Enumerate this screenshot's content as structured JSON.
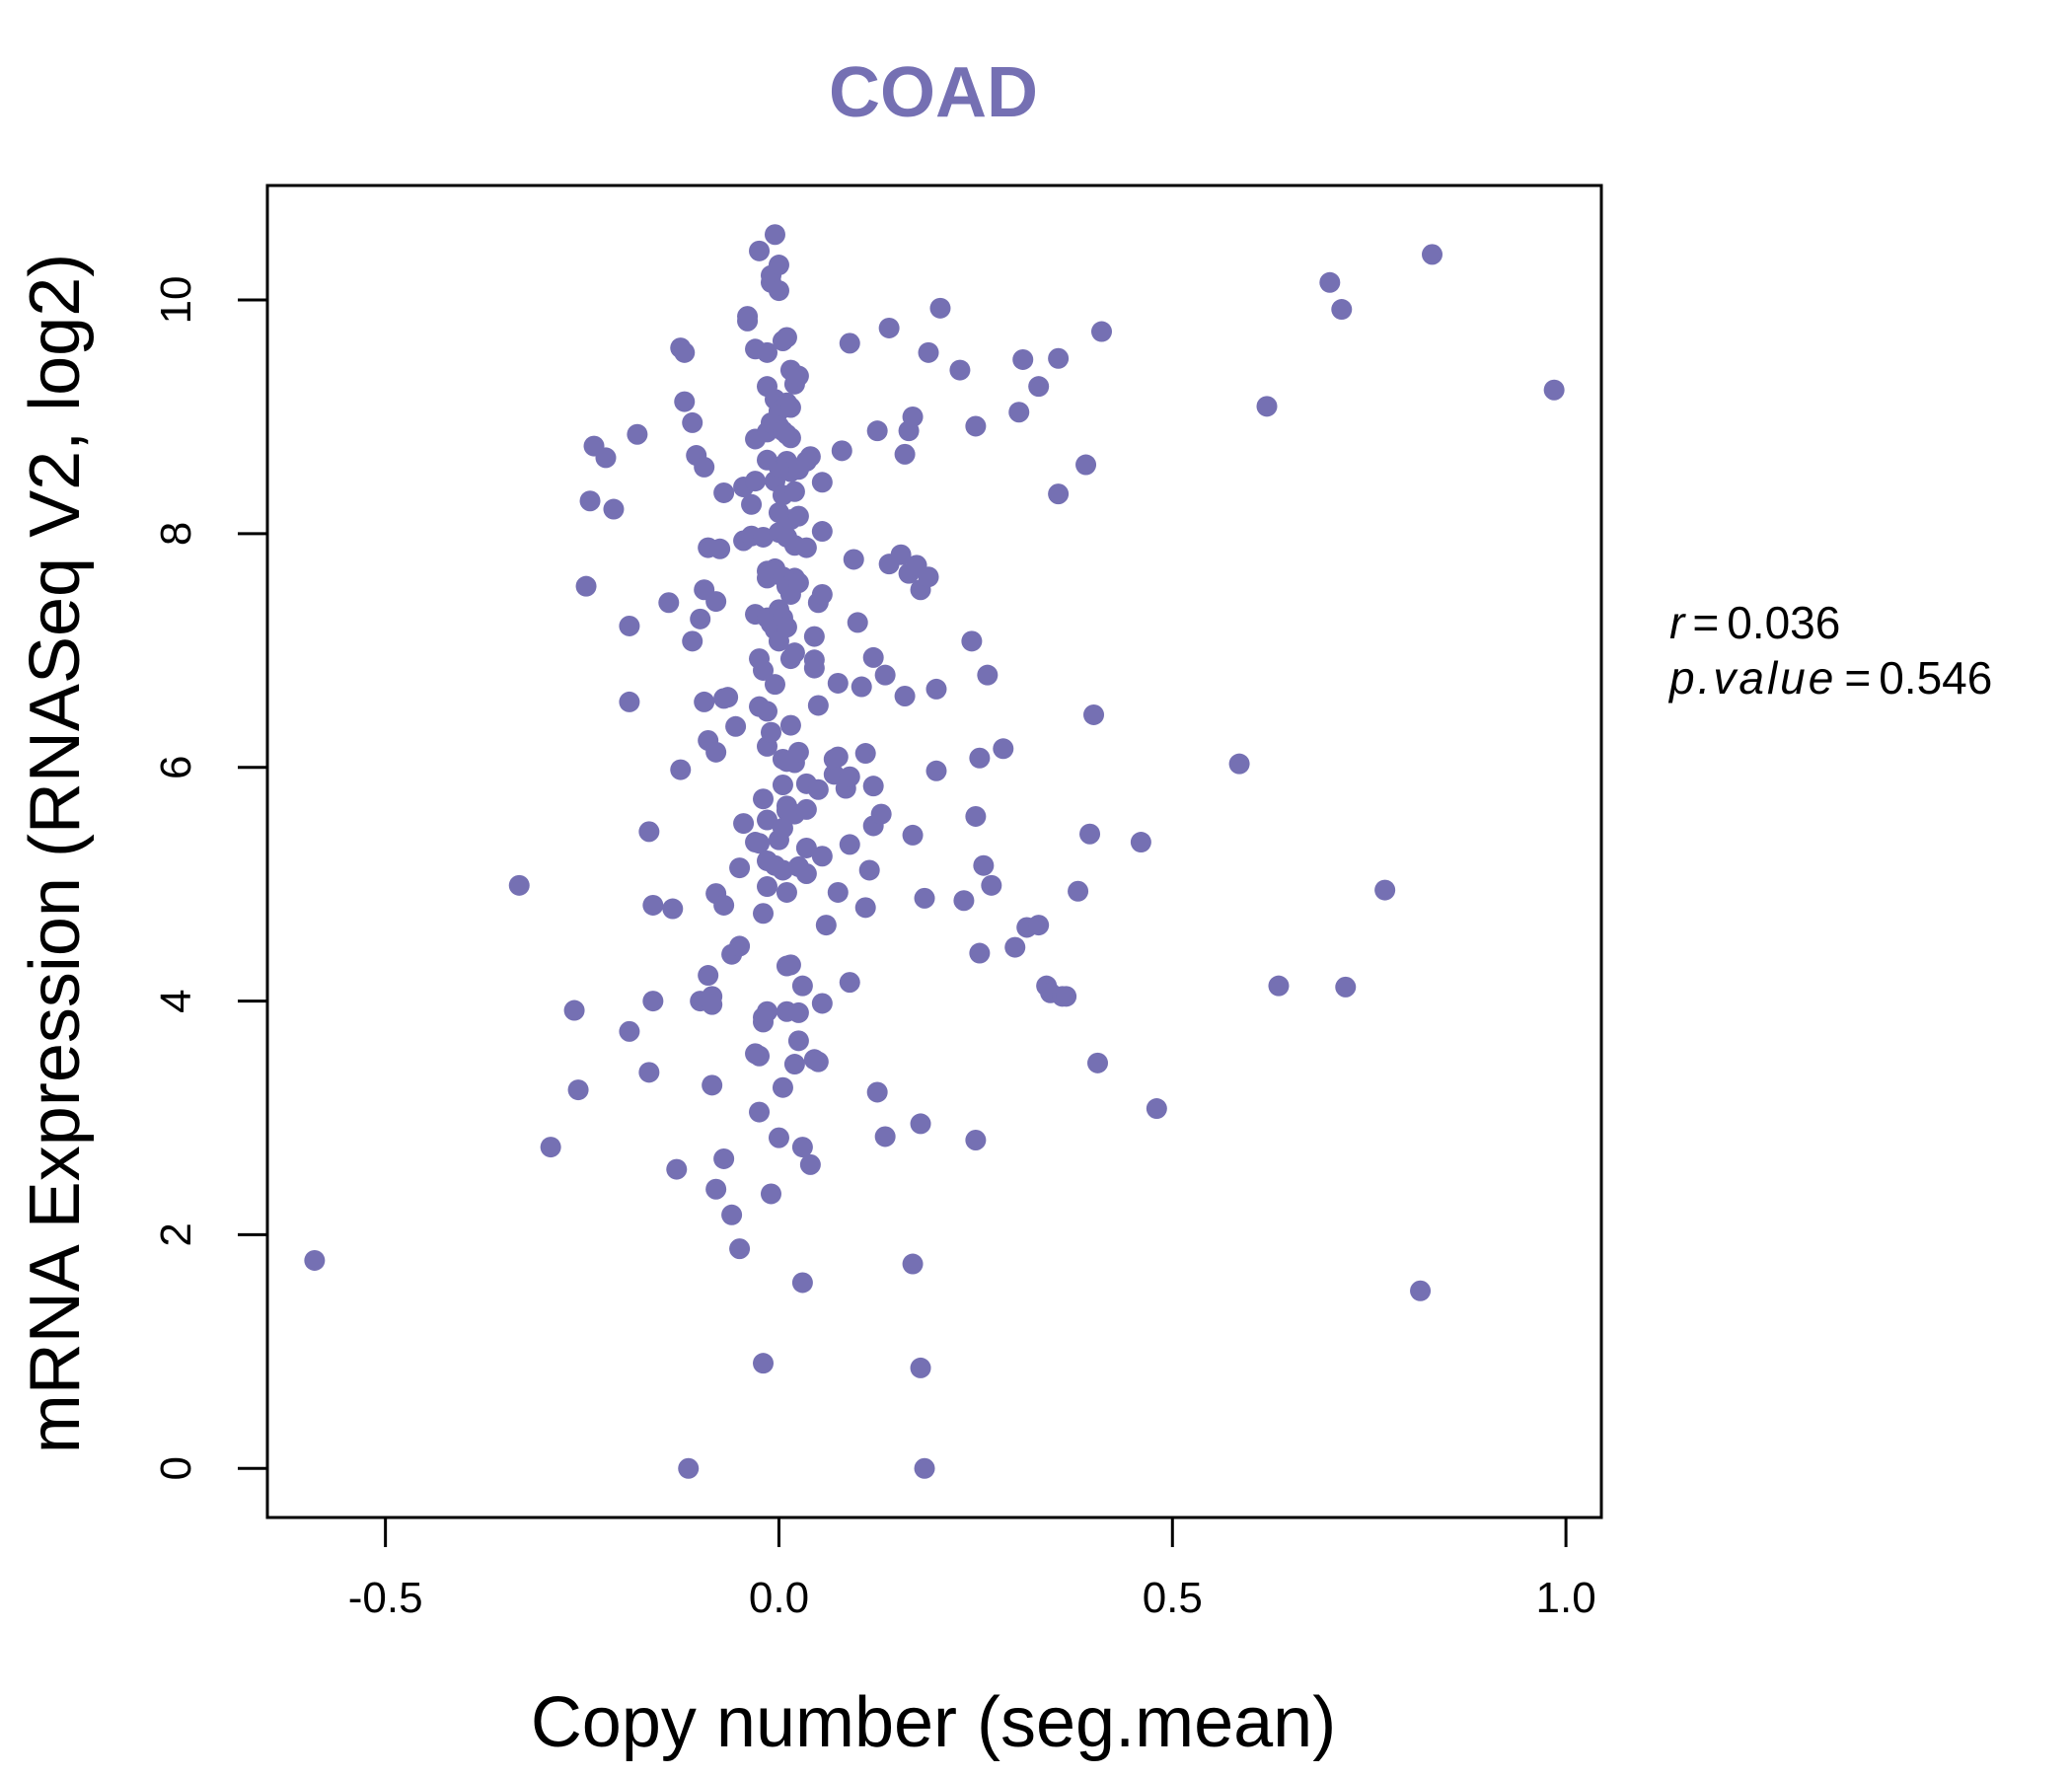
{
  "chart_data": {
    "type": "scatter",
    "title": "COAD",
    "xlabel": "Copy number (seg.mean)",
    "ylabel": "mRNA Expression (RNASeq V2, log2)",
    "xlim": [
      -0.65,
      1.045
    ],
    "ylim": [
      -0.42,
      10.98
    ],
    "xticks": [
      -0.5,
      0.0,
      0.5,
      1.0
    ],
    "xtick_labels": [
      "-0.5",
      "0.0",
      "0.5",
      "1.0"
    ],
    "yticks": [
      0,
      2,
      4,
      6,
      8,
      10
    ],
    "ytick_labels": [
      "0",
      "2",
      "4",
      "6",
      "8",
      "10"
    ],
    "grid": false,
    "stats": {
      "r_label": "r",
      "r_value": "0.036",
      "p_label": "p.value",
      "p_value": "0.546"
    },
    "points": [
      [
        -0.59,
        1.78
      ],
      [
        -0.33,
        4.99
      ],
      [
        -0.29,
        2.75
      ],
      [
        -0.26,
        3.92
      ],
      [
        -0.255,
        3.24
      ],
      [
        -0.245,
        7.55
      ],
      [
        -0.24,
        8.28
      ],
      [
        -0.235,
        8.75
      ],
      [
        -0.22,
        8.65
      ],
      [
        -0.21,
        8.21
      ],
      [
        -0.19,
        7.21
      ],
      [
        -0.19,
        6.56
      ],
      [
        -0.19,
        3.74
      ],
      [
        -0.18,
        8.85
      ],
      [
        -0.165,
        5.45
      ],
      [
        -0.165,
        3.39
      ],
      [
        -0.16,
        4.0
      ],
      [
        -0.16,
        4.82
      ],
      [
        -0.14,
        7.41
      ],
      [
        -0.135,
        4.79
      ],
      [
        -0.13,
        2.56
      ],
      [
        -0.125,
        5.98
      ],
      [
        -0.125,
        9.59
      ],
      [
        -0.12,
        9.13
      ],
      [
        -0.12,
        9.55
      ],
      [
        -0.115,
        0.0
      ],
      [
        -0.11,
        8.95
      ],
      [
        -0.11,
        7.08
      ],
      [
        -0.105,
        8.67
      ],
      [
        -0.1,
        7.27
      ],
      [
        -0.1,
        4.0
      ],
      [
        -0.095,
        8.57
      ],
      [
        -0.095,
        7.52
      ],
      [
        -0.095,
        6.56
      ],
      [
        -0.09,
        7.88
      ],
      [
        -0.09,
        6.23
      ],
      [
        -0.09,
        4.22
      ],
      [
        -0.085,
        4.04
      ],
      [
        -0.085,
        3.97
      ],
      [
        -0.085,
        3.28
      ],
      [
        -0.08,
        7.42
      ],
      [
        -0.08,
        6.13
      ],
      [
        -0.08,
        4.92
      ],
      [
        -0.08,
        2.39
      ],
      [
        -0.075,
        7.87
      ],
      [
        -0.07,
        8.35
      ],
      [
        -0.07,
        6.59
      ],
      [
        -0.07,
        4.82
      ],
      [
        -0.07,
        2.65
      ],
      [
        -0.065,
        6.6
      ],
      [
        -0.06,
        4.4
      ],
      [
        -0.06,
        2.17
      ],
      [
        -0.055,
        6.35
      ],
      [
        -0.05,
        5.14
      ],
      [
        -0.05,
        4.47
      ],
      [
        -0.05,
        1.88
      ],
      [
        -0.045,
        8.4
      ],
      [
        -0.045,
        7.94
      ],
      [
        -0.045,
        5.52
      ],
      [
        -0.04,
        9.82
      ],
      [
        -0.04,
        9.86
      ],
      [
        -0.035,
        7.98
      ],
      [
        -0.035,
        8.25
      ],
      [
        -0.03,
        9.58
      ],
      [
        -0.03,
        8.45
      ],
      [
        -0.03,
        8.81
      ],
      [
        -0.03,
        7.31
      ],
      [
        -0.03,
        5.36
      ],
      [
        -0.03,
        3.55
      ],
      [
        -0.025,
        10.42
      ],
      [
        -0.025,
        6.93
      ],
      [
        -0.025,
        6.52
      ],
      [
        -0.025,
        5.35
      ],
      [
        -0.025,
        3.53
      ],
      [
        -0.025,
        3.05
      ],
      [
        -0.02,
        7.97
      ],
      [
        -0.02,
        6.83
      ],
      [
        -0.02,
        5.73
      ],
      [
        -0.02,
        4.75
      ],
      [
        -0.02,
        3.86
      ],
      [
        -0.02,
        3.82
      ],
      [
        -0.02,
        0.9
      ],
      [
        -0.015,
        9.55
      ],
      [
        -0.015,
        9.26
      ],
      [
        -0.015,
        8.87
      ],
      [
        -0.015,
        8.63
      ],
      [
        -0.015,
        7.68
      ],
      [
        -0.015,
        7.62
      ],
      [
        -0.015,
        7.28
      ],
      [
        -0.015,
        6.48
      ],
      [
        -0.015,
        6.18
      ],
      [
        -0.015,
        5.55
      ],
      [
        -0.015,
        5.2
      ],
      [
        -0.015,
        4.98
      ],
      [
        -0.015,
        3.91
      ],
      [
        -0.01,
        10.15
      ],
      [
        -0.01,
        10.21
      ],
      [
        -0.01,
        8.95
      ],
      [
        -0.01,
        7.23
      ],
      [
        -0.01,
        6.3
      ],
      [
        -0.01,
        2.35
      ],
      [
        -0.005,
        10.56
      ],
      [
        -0.005,
        9.15
      ],
      [
        -0.005,
        8.45
      ],
      [
        -0.005,
        7.7
      ],
      [
        -0.005,
        7.18
      ],
      [
        -0.005,
        6.71
      ],
      [
        -0.005,
        5.16
      ],
      [
        0.0,
        10.3
      ],
      [
        0.0,
        10.08
      ],
      [
        0.0,
        9.05
      ],
      [
        0.0,
        8.92
      ],
      [
        0.0,
        8.57
      ],
      [
        0.0,
        8.18
      ],
      [
        0.0,
        8.01
      ],
      [
        0.0,
        7.35
      ],
      [
        0.0,
        7.18
      ],
      [
        0.0,
        7.08
      ],
      [
        0.0,
        5.38
      ],
      [
        0.0,
        2.83
      ],
      [
        0.005,
        9.65
      ],
      [
        0.005,
        8.88
      ],
      [
        0.005,
        8.33
      ],
      [
        0.005,
        7.63
      ],
      [
        0.005,
        7.28
      ],
      [
        0.005,
        6.07
      ],
      [
        0.005,
        5.85
      ],
      [
        0.005,
        5.48
      ],
      [
        0.005,
        5.12
      ],
      [
        0.005,
        3.26
      ],
      [
        0.01,
        9.68
      ],
      [
        0.01,
        9.12
      ],
      [
        0.01,
        8.85
      ],
      [
        0.01,
        8.62
      ],
      [
        0.01,
        7.97
      ],
      [
        0.01,
        7.55
      ],
      [
        0.01,
        7.2
      ],
      [
        0.01,
        6.05
      ],
      [
        0.01,
        5.67
      ],
      [
        0.01,
        5.63
      ],
      [
        0.01,
        4.93
      ],
      [
        0.01,
        4.3
      ],
      [
        0.01,
        3.91
      ],
      [
        0.015,
        9.4
      ],
      [
        0.015,
        9.08
      ],
      [
        0.015,
        8.82
      ],
      [
        0.015,
        8.53
      ],
      [
        0.015,
        8.12
      ],
      [
        0.015,
        7.48
      ],
      [
        0.015,
        6.93
      ],
      [
        0.015,
        6.36
      ],
      [
        0.015,
        4.31
      ],
      [
        0.02,
        9.28
      ],
      [
        0.02,
        8.36
      ],
      [
        0.02,
        7.9
      ],
      [
        0.02,
        7.62
      ],
      [
        0.02,
        6.98
      ],
      [
        0.02,
        6.04
      ],
      [
        0.02,
        5.6
      ],
      [
        0.02,
        3.46
      ],
      [
        0.025,
        9.35
      ],
      [
        0.025,
        8.55
      ],
      [
        0.025,
        8.15
      ],
      [
        0.025,
        7.58
      ],
      [
        0.025,
        6.13
      ],
      [
        0.025,
        5.15
      ],
      [
        0.025,
        3.66
      ],
      [
        0.025,
        3.9
      ],
      [
        0.03,
        4.13
      ],
      [
        0.03,
        2.75
      ],
      [
        0.03,
        1.59
      ],
      [
        0.035,
        8.62
      ],
      [
        0.035,
        7.88
      ],
      [
        0.035,
        5.86
      ],
      [
        0.035,
        5.64
      ],
      [
        0.035,
        5.31
      ],
      [
        0.035,
        5.09
      ],
      [
        0.04,
        8.66
      ],
      [
        0.04,
        2.6
      ],
      [
        0.045,
        7.12
      ],
      [
        0.045,
        6.92
      ],
      [
        0.045,
        6.85
      ],
      [
        0.045,
        3.5
      ],
      [
        0.05,
        7.41
      ],
      [
        0.05,
        6.53
      ],
      [
        0.05,
        5.81
      ],
      [
        0.05,
        3.48
      ],
      [
        0.055,
        8.44
      ],
      [
        0.055,
        8.02
      ],
      [
        0.055,
        7.48
      ],
      [
        0.055,
        5.24
      ],
      [
        0.055,
        3.98
      ],
      [
        0.06,
        4.65
      ],
      [
        0.07,
        5.94
      ],
      [
        0.07,
        6.07
      ],
      [
        0.075,
        6.72
      ],
      [
        0.075,
        6.09
      ],
      [
        0.075,
        4.93
      ],
      [
        0.08,
        8.71
      ],
      [
        0.085,
        5.82
      ],
      [
        0.09,
        9.63
      ],
      [
        0.09,
        5.92
      ],
      [
        0.09,
        5.34
      ],
      [
        0.09,
        4.16
      ],
      [
        0.095,
        7.78
      ],
      [
        0.1,
        7.24
      ],
      [
        0.105,
        6.69
      ],
      [
        0.11,
        6.12
      ],
      [
        0.11,
        4.8
      ],
      [
        0.115,
        5.12
      ],
      [
        0.12,
        6.94
      ],
      [
        0.12,
        5.5
      ],
      [
        0.12,
        5.84
      ],
      [
        0.125,
        8.88
      ],
      [
        0.125,
        3.22
      ],
      [
        0.13,
        5.6
      ],
      [
        0.135,
        6.79
      ],
      [
        0.135,
        2.84
      ],
      [
        0.14,
        9.76
      ],
      [
        0.14,
        7.74
      ],
      [
        0.155,
        7.82
      ],
      [
        0.16,
        8.68
      ],
      [
        0.16,
        6.61
      ],
      [
        0.165,
        8.88
      ],
      [
        0.165,
        7.66
      ],
      [
        0.17,
        9.0
      ],
      [
        0.17,
        5.42
      ],
      [
        0.17,
        1.75
      ],
      [
        0.175,
        7.73
      ],
      [
        0.18,
        7.52
      ],
      [
        0.18,
        2.95
      ],
      [
        0.18,
        0.86
      ],
      [
        0.185,
        4.88
      ],
      [
        0.185,
        0.0
      ],
      [
        0.19,
        9.55
      ],
      [
        0.19,
        7.63
      ],
      [
        0.2,
        6.67
      ],
      [
        0.2,
        5.97
      ],
      [
        0.205,
        9.93
      ],
      [
        0.23,
        9.4
      ],
      [
        0.235,
        4.86
      ],
      [
        0.245,
        7.08
      ],
      [
        0.25,
        8.92
      ],
      [
        0.25,
        5.58
      ],
      [
        0.25,
        2.81
      ],
      [
        0.255,
        6.08
      ],
      [
        0.255,
        4.41
      ],
      [
        0.26,
        5.16
      ],
      [
        0.265,
        6.79
      ],
      [
        0.27,
        4.99
      ],
      [
        0.285,
        6.16
      ],
      [
        0.3,
        4.46
      ],
      [
        0.305,
        9.04
      ],
      [
        0.31,
        9.49
      ],
      [
        0.315,
        4.63
      ],
      [
        0.33,
        9.26
      ],
      [
        0.33,
        4.65
      ],
      [
        0.34,
        4.13
      ],
      [
        0.345,
        4.07
      ],
      [
        0.355,
        9.5
      ],
      [
        0.355,
        8.34
      ],
      [
        0.36,
        4.04
      ],
      [
        0.365,
        4.04
      ],
      [
        0.38,
        4.94
      ],
      [
        0.39,
        8.59
      ],
      [
        0.395,
        5.43
      ],
      [
        0.4,
        6.45
      ],
      [
        0.405,
        3.47
      ],
      [
        0.41,
        9.73
      ],
      [
        0.46,
        5.36
      ],
      [
        0.48,
        3.08
      ],
      [
        0.585,
        6.03
      ],
      [
        0.62,
        9.09
      ],
      [
        0.635,
        4.13
      ],
      [
        0.7,
        10.15
      ],
      [
        0.715,
        9.92
      ],
      [
        0.72,
        4.12
      ],
      [
        0.77,
        4.95
      ],
      [
        0.815,
        1.52
      ],
      [
        0.83,
        10.39
      ],
      [
        0.985,
        9.23
      ]
    ]
  },
  "colors": {
    "point": "#7570b3",
    "title": "#7570b3",
    "axis": "#000000"
  }
}
